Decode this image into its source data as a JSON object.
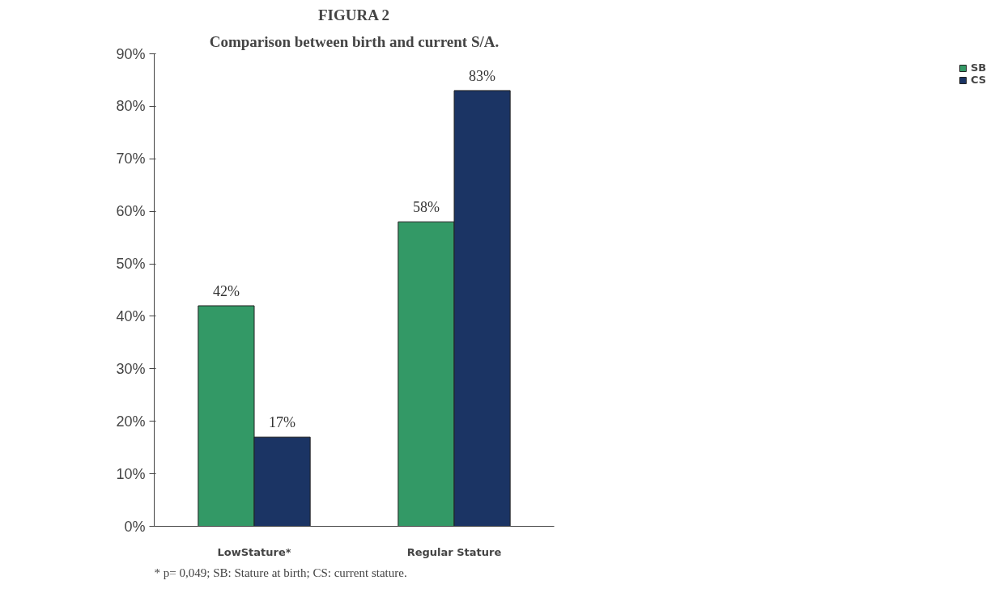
{
  "chart_data": {
    "type": "bar",
    "title": "FIGURA 2",
    "subtitle": "Comparison between birth and current S/A.",
    "categories": [
      "LowStature*",
      "Regular Stature"
    ],
    "series": [
      {
        "name": "SB",
        "color": "#339966",
        "values": [
          42,
          58
        ],
        "value_labels": [
          "42%",
          "58%"
        ]
      },
      {
        "name": "CS",
        "color": "#1b3464",
        "values": [
          17,
          83
        ],
        "value_labels": [
          "17%",
          "83%"
        ]
      }
    ],
    "ylim": [
      0,
      90
    ],
    "yticks": [
      {
        "value": 0,
        "label": "0%"
      },
      {
        "value": 10,
        "label": "10%"
      },
      {
        "value": 20,
        "label": "20%"
      },
      {
        "value": 30,
        "label": "30%"
      },
      {
        "value": 40,
        "label": "40%"
      },
      {
        "value": 50,
        "label": "50%"
      },
      {
        "value": 60,
        "label": "60%"
      },
      {
        "value": 70,
        "label": "70%"
      },
      {
        "value": 80,
        "label": "80%"
      },
      {
        "value": 90,
        "label": "90%"
      }
    ],
    "grid": false,
    "legend": "right",
    "annotations": [
      "* p= 0,049; SB: Stature at birth; CS: current stature."
    ]
  }
}
